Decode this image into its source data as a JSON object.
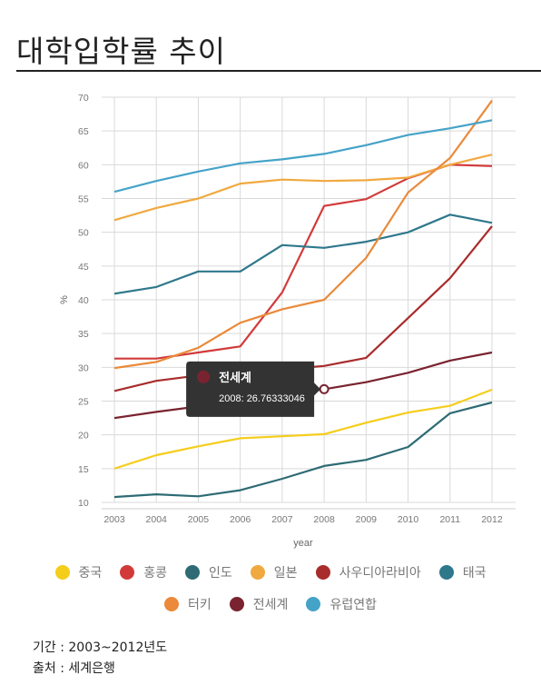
{
  "page": {
    "title": "대학입학률 추이",
    "period_text": "기간 : 2003~2012년도",
    "source_text": "출처 : 세계은행"
  },
  "chart_data": {
    "type": "line",
    "xlabel": "year",
    "ylabel": "%",
    "x": [
      2003,
      2004,
      2005,
      2006,
      2007,
      2008,
      2009,
      2010,
      2011,
      2012
    ],
    "ylim": [
      10,
      70
    ],
    "yticks": [
      10,
      15,
      20,
      25,
      30,
      35,
      40,
      45,
      50,
      55,
      60,
      65,
      70
    ],
    "grid": true,
    "legend_placement": "bottom",
    "series": [
      {
        "name": "중국",
        "color": "#f5cd1b",
        "values": [
          15.0,
          17.0,
          18.3,
          19.5,
          19.8,
          20.1,
          21.8,
          23.3,
          24.3,
          26.7
        ]
      },
      {
        "name": "홍콩",
        "color": "#d23a3a",
        "values": [
          31.3,
          31.3,
          32.2,
          33.1,
          41.1,
          53.9,
          54.9,
          58.0,
          60.0,
          59.8
        ]
      },
      {
        "name": "인도",
        "color": "#2e6b74",
        "values": [
          10.8,
          11.2,
          10.9,
          11.8,
          13.5,
          15.4,
          16.3,
          18.2,
          23.2,
          24.8
        ]
      },
      {
        "name": "일본",
        "color": "#f0a93f",
        "values": [
          51.8,
          53.6,
          55.0,
          57.2,
          57.8,
          57.6,
          57.7,
          58.1,
          60.0,
          61.5
        ]
      },
      {
        "name": "사우디아라비아",
        "color": "#a92c2c",
        "values": [
          26.5,
          28.0,
          28.8,
          29.8,
          29.7,
          30.2,
          31.4,
          37.3,
          43.2,
          50.9
        ]
      },
      {
        "name": "태국",
        "color": "#2f788c",
        "values": [
          40.9,
          41.9,
          44.2,
          44.2,
          48.1,
          47.7,
          48.6,
          50.0,
          52.6,
          51.4
        ]
      },
      {
        "name": "터키",
        "color": "#ea8a3a",
        "values": [
          29.9,
          30.8,
          32.9,
          36.6,
          38.6,
          40.0,
          46.2,
          55.9,
          61.0,
          69.5
        ]
      },
      {
        "name": "전세계",
        "color": "#7a2330",
        "values": [
          22.5,
          23.4,
          24.2,
          25.0,
          25.9,
          26.76333046,
          27.8,
          29.2,
          31.0,
          32.2
        ]
      },
      {
        "name": "유럽연합",
        "color": "#45a3c8",
        "values": [
          56.0,
          57.6,
          59.0,
          60.2,
          60.8,
          61.6,
          62.9,
          64.4,
          65.4,
          66.6
        ]
      }
    ],
    "tooltip": {
      "series": "전세계",
      "text": "2008: 26.76333046",
      "x": 2008,
      "y": 26.76333046
    }
  },
  "legend": {
    "row1": [
      {
        "label": "중국",
        "color": "#f5cd1b"
      },
      {
        "label": "홍콩",
        "color": "#d23a3a"
      },
      {
        "label": "인도",
        "color": "#2e6b74"
      },
      {
        "label": "일본",
        "color": "#f0a93f"
      },
      {
        "label": "사우디아라비아",
        "color": "#a92c2c"
      },
      {
        "label": "태국",
        "color": "#2f788c"
      }
    ],
    "row2": [
      {
        "label": "터키",
        "color": "#ea8a3a"
      },
      {
        "label": "전세계",
        "color": "#7a2330"
      },
      {
        "label": "유럽연합",
        "color": "#45a3c8"
      }
    ]
  }
}
